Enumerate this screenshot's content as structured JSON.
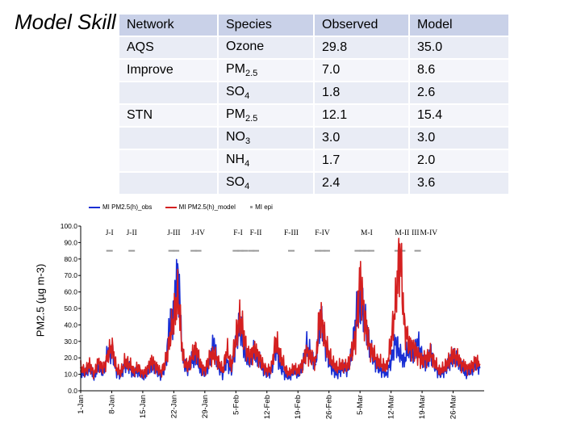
{
  "slide_title": "Model Skill",
  "table": {
    "headers": [
      "Network",
      "Species",
      "Observed",
      "Model"
    ],
    "rows": [
      {
        "network": "AQS",
        "species": "Ozone",
        "sub": "",
        "observed": "29.8",
        "model": "35.0"
      },
      {
        "network": "Improve",
        "species": "PM",
        "sub": "2.5",
        "observed": "7.0",
        "model": "8.6"
      },
      {
        "network": "",
        "species": "SO",
        "sub": "4",
        "observed": "1.8",
        "model": "2.6"
      },
      {
        "network": "STN",
        "species": "PM",
        "sub": "2.5",
        "observed": "12.1",
        "model": "15.4"
      },
      {
        "network": "",
        "species": "NO",
        "sub": "3",
        "observed": "3.0",
        "model": "3.0"
      },
      {
        "network": "",
        "species": "NH",
        "sub": "4",
        "observed": "1.7",
        "model": "2.0"
      },
      {
        "network": "",
        "species": "SO",
        "sub": "4",
        "observed": "2.4",
        "model": "3.6"
      }
    ]
  },
  "chart_data": {
    "type": "line",
    "ylabel": "PM2.5 (µg m-3)",
    "ylim": [
      0,
      100
    ],
    "yticks": [
      "0.0",
      "10.0",
      "20.0",
      "30.0",
      "40.0",
      "50.0",
      "60.0",
      "70.0",
      "80.0",
      "90.0",
      "100.0"
    ],
    "xlim_days": [
      0,
      91
    ],
    "x_tick_days": [
      0,
      7,
      14,
      21,
      28,
      35,
      42,
      49,
      56,
      63,
      70,
      77,
      84
    ],
    "xticks": [
      "1-Jan",
      "8-Jan",
      "15-Jan",
      "22-Jan",
      "29-Jan",
      "5-Feb",
      "12-Feb",
      "19-Feb",
      "26-Feb",
      "5-Mar",
      "12-Mar",
      "19-Mar",
      "26-Mar"
    ],
    "legend": [
      "MI PM2.5(h)_obs",
      "MI PM2.5(h)_model",
      "MI epi"
    ],
    "colors": {
      "obs": "#1a2fd4",
      "model": "#d42020",
      "epi": "#999999"
    },
    "episodes": [
      {
        "label": "J-I",
        "day": 6.5
      },
      {
        "label": "J-II",
        "day": 11.5
      },
      {
        "label": "J-III",
        "day": 21
      },
      {
        "label": "J-IV",
        "day": 26.5
      },
      {
        "label": "F-I",
        "day": 35.5
      },
      {
        "label": "F-II",
        "day": 39.5
      },
      {
        "label": "F-III",
        "day": 47.5
      },
      {
        "label": "F-IV",
        "day": 54.5
      },
      {
        "label": "M-I",
        "day": 64.5
      },
      {
        "label": "M-II",
        "day": 72.5
      },
      {
        "label": "III",
        "day": 75.5
      },
      {
        "label": "M-IV",
        "day": 78.5
      }
    ],
    "epi_marker_days": [
      6.5,
      11.5,
      20.5,
      21.5,
      25.5,
      26.5,
      35,
      36,
      37,
      38.5,
      39.5,
      47.5,
      53.5,
      54.5,
      55.5,
      62.5,
      63.5,
      64.5,
      65.5,
      71.5,
      72.5,
      76
    ],
    "epi_level": 85,
    "series": [
      {
        "name": "MI PM2.5(h)_obs",
        "key": "obs",
        "x": [
          0,
          1,
          2,
          3,
          4,
          5,
          6,
          7,
          8,
          9,
          10,
          11,
          12,
          13,
          14,
          15,
          16,
          17,
          18,
          19,
          20,
          21,
          22,
          23,
          24,
          25,
          26,
          27,
          28,
          29,
          30,
          31,
          32,
          33,
          34,
          35,
          36,
          37,
          38,
          39,
          40,
          41,
          42,
          43,
          44,
          45,
          46,
          47,
          48,
          49,
          50,
          51,
          52,
          53,
          54,
          55,
          56,
          57,
          58,
          59,
          60,
          61,
          62,
          63,
          64,
          65,
          66,
          67,
          68,
          69,
          70,
          71,
          72,
          73,
          74,
          75,
          76,
          77,
          78,
          79,
          80,
          81,
          82,
          83,
          84,
          85,
          86,
          87,
          88,
          89,
          90
        ],
        "values": [
          12,
          10,
          14,
          8,
          15,
          11,
          22,
          25,
          12,
          9,
          16,
          14,
          10,
          12,
          8,
          11,
          15,
          13,
          9,
          14,
          38,
          50,
          72,
          20,
          12,
          18,
          20,
          13,
          10,
          17,
          30,
          15,
          10,
          18,
          12,
          30,
          40,
          22,
          18,
          23,
          20,
          14,
          10,
          12,
          26,
          15,
          10,
          8,
          12,
          10,
          14,
          28,
          21,
          16,
          46,
          30,
          18,
          12,
          10,
          14,
          12,
          20,
          42,
          55,
          44,
          30,
          20,
          14,
          12,
          10,
          18,
          30,
          22,
          18,
          26,
          20,
          30,
          20,
          16,
          24,
          14,
          10,
          12,
          16,
          20,
          18,
          14,
          10,
          12,
          16,
          14
        ]
      },
      {
        "name": "MI PM2.5(h)_model",
        "key": "model",
        "x": [
          0,
          1,
          2,
          3,
          4,
          5,
          6,
          7,
          8,
          9,
          10,
          11,
          12,
          13,
          14,
          15,
          16,
          17,
          18,
          19,
          20,
          21,
          22,
          23,
          24,
          25,
          26,
          27,
          28,
          29,
          30,
          31,
          32,
          33,
          34,
          35,
          36,
          37,
          38,
          39,
          40,
          41,
          42,
          43,
          44,
          45,
          46,
          47,
          48,
          49,
          50,
          51,
          52,
          53,
          54,
          55,
          56,
          57,
          58,
          59,
          60,
          61,
          62,
          63,
          64,
          65,
          66,
          67,
          68,
          69,
          70,
          71,
          72,
          73,
          74,
          75,
          76,
          77,
          78,
          79,
          80,
          81,
          82,
          83,
          84,
          85,
          86,
          87,
          88,
          89,
          90
        ],
        "values": [
          14,
          12,
          16,
          10,
          18,
          13,
          20,
          28,
          14,
          11,
          18,
          16,
          12,
          14,
          10,
          13,
          18,
          15,
          11,
          16,
          30,
          45,
          58,
          22,
          14,
          20,
          26,
          16,
          12,
          20,
          22,
          18,
          12,
          25,
          15,
          32,
          45,
          30,
          20,
          25,
          22,
          16,
          12,
          14,
          30,
          22,
          14,
          10,
          14,
          12,
          16,
          24,
          20,
          18,
          48,
          32,
          22,
          16,
          14,
          16,
          14,
          22,
          32,
          68,
          45,
          28,
          22,
          18,
          16,
          14,
          30,
          52,
          86,
          40,
          28,
          26,
          22,
          18,
          20,
          22,
          16,
          12,
          14,
          18,
          22,
          20,
          16,
          14,
          14,
          18,
          16
        ]
      }
    ]
  }
}
